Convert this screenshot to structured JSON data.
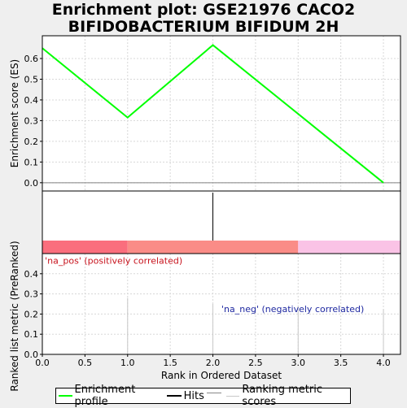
{
  "title_lines": [
    "Enrichment plot: GSE21976 CACO2",
    "BIFIDOBACTERIUM BIFIDUM 2H"
  ],
  "colors": {
    "es_line": "#00ff00",
    "hits": "#000000",
    "bar_red": "#fa6e7d",
    "bar_salmon": "#fa8c87",
    "bar_pink": "#fac3e6",
    "ranking": "#c8c8c8",
    "pos_label": "#c8141e",
    "neg_label": "#1e28a0",
    "grid": "#d8d8d8"
  },
  "legend": {
    "items": [
      {
        "label": "Enrichment profile",
        "icon": "green-line"
      },
      {
        "label": "Hits",
        "icon": "black-line"
      },
      {
        "label": "",
        "icon": "thin-line"
      },
      {
        "label": "Ranking metric scores",
        "icon": "gray-line"
      }
    ]
  },
  "chart_data": [
    {
      "type": "line",
      "panel": "enrichment",
      "ylabel": "Enrichment score (ES)",
      "xlim": [
        0,
        4.2
      ],
      "ylim": [
        -0.04,
        0.71
      ],
      "yticks": [
        "0.0",
        "0.1",
        "0.2",
        "0.3",
        "0.4",
        "0.5",
        "0.6"
      ],
      "ytick_values": [
        0.0,
        0.1,
        0.2,
        0.3,
        0.4,
        0.5,
        0.6
      ],
      "grid": true,
      "series": [
        {
          "x": [
            0,
            1,
            2,
            4
          ],
          "y": [
            0.65,
            0.315,
            0.665,
            0.0
          ]
        }
      ]
    },
    {
      "type": "bar",
      "panel": "hits",
      "hits_x": [
        2
      ],
      "color_bands": [
        {
          "from": 0,
          "to": 1,
          "color": "bar_red"
        },
        {
          "from": 1,
          "to": 3,
          "color": "bar_salmon"
        },
        {
          "from": 3,
          "to": 4.2,
          "color": "bar_pink"
        }
      ]
    },
    {
      "type": "bar",
      "panel": "ranking",
      "xlabel": "Rank in Ordered Dataset",
      "ylabel": "Ranked list metric (PreRanked)",
      "xlim": [
        0,
        4.2
      ],
      "ylim": [
        0,
        0.5
      ],
      "xticks": [
        "0.0",
        "0.5",
        "1.0",
        "1.5",
        "2.0",
        "2.5",
        "3.0",
        "3.5",
        "4.0"
      ],
      "xtick_values": [
        0,
        0.5,
        1,
        1.5,
        2,
        2.5,
        3,
        3.5,
        4
      ],
      "yticks": [
        "0.0",
        "0.1",
        "0.2",
        "0.3",
        "0.4"
      ],
      "ytick_values": [
        0,
        0.1,
        0.2,
        0.3,
        0.4
      ],
      "grid": true,
      "x": [
        0,
        1,
        2,
        3,
        4
      ],
      "values": [
        0.0,
        0.28,
        0.25,
        0.24,
        0.225
      ],
      "annotations": [
        {
          "text": "'na_pos' (positively correlated)",
          "x": 0.03,
          "y": 0.465,
          "color": "pos_label"
        },
        {
          "text": "'na_neg' (negatively correlated)",
          "x": 2.1,
          "y": 0.225,
          "color": "neg_label"
        }
      ]
    }
  ]
}
